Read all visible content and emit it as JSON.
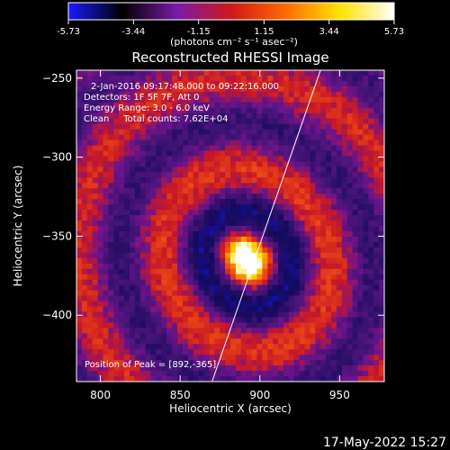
{
  "chart_data": {
    "type": "heatmap",
    "title": "Reconstructed RHESSI Image",
    "xlabel": "Heliocentric X (arcsec)",
    "ylabel": "Heliocentric Y (arcsec)",
    "xlim": [
      785,
      978
    ],
    "ylim": [
      -442,
      -245
    ],
    "x_ticks": [
      800,
      850,
      900,
      950
    ],
    "y_ticks": [
      -250,
      -300,
      -350,
      -400
    ],
    "colorbar": {
      "ticks": [
        "-5.73",
        "-3.44",
        "-1.15",
        "1.15",
        "3.44",
        "5.73"
      ],
      "range": [
        -5.73,
        5.73
      ],
      "unit_label": "(photons cm⁻² s⁻¹ asec⁻²)",
      "colors": [
        "#1a1aff",
        "#000000",
        "#7a1aa8",
        "#d01818",
        "#ff6a00",
        "#ffe200",
        "#ffffff"
      ]
    },
    "annotations": [
      "2-Jan-2016 09:17:48.000 to 09:22:16.000",
      "Detectors: 1F 5F 7F, Att 0",
      "Energy Range: 3.0 - 6.0 keV",
      "Clean     Total counts: 7.62E+04"
    ],
    "peak_label": "Position of Peak = [892,-365]",
    "peak": {
      "x": 892,
      "y": -365,
      "value": 5.73
    },
    "limb": [
      [
        938,
        -245
      ],
      [
        870,
        -442
      ]
    ],
    "footer_date": "17-May-2022 15:27"
  }
}
